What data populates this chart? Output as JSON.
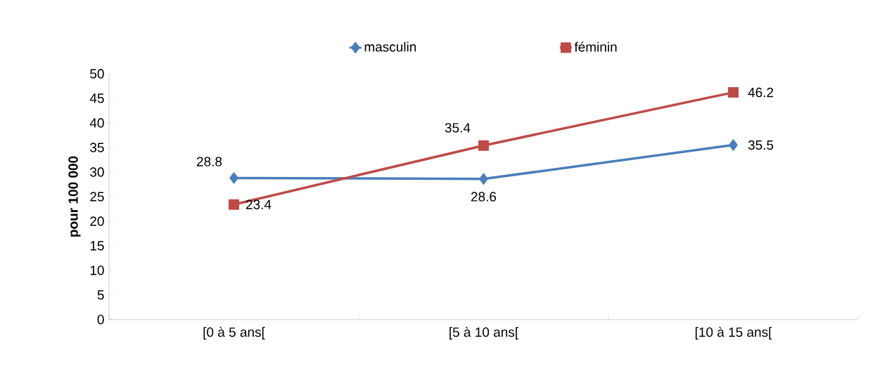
{
  "chart_data": {
    "type": "line",
    "ylabel": "pour 100 000",
    "categories": [
      "[0 à 5 ans[",
      "[5 à 10 ans[",
      "[10 à 15 ans["
    ],
    "series": [
      {
        "name": "masculin",
        "color": "#4a7ebb",
        "marker": "diamond",
        "values": [
          28.8,
          28.6,
          35.5
        ]
      },
      {
        "name": "féminin",
        "color": "#be4b48",
        "marker": "square",
        "values": [
          23.4,
          35.4,
          46.2
        ]
      }
    ],
    "ylim": [
      0,
      50
    ],
    "yticks": [
      0,
      5,
      10,
      15,
      20,
      25,
      30,
      35,
      40,
      45,
      50
    ],
    "data_labels": true,
    "legend": "top",
    "grid": false
  }
}
